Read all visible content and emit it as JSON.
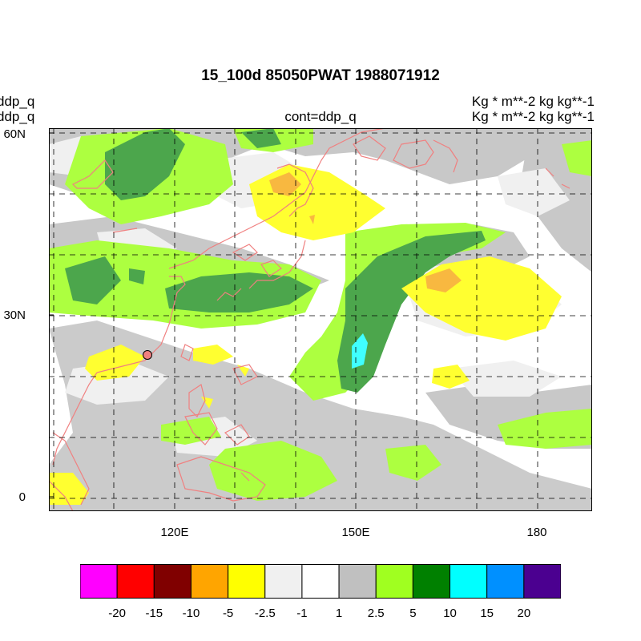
{
  "title": "15_100d 85050PWAT  1988071912",
  "left_labels": [
    "ddp_q",
    "ddp_q"
  ],
  "right_labels": [
    "Kg  * m**-2 kg kg**-1",
    "Kg  * m**-2 kg kg**-1"
  ],
  "center_label": "cont=ddp_q",
  "axes": {
    "y_ticks": [
      "60N",
      "30N",
      "0"
    ],
    "x_ticks": [
      "120E",
      "150E",
      "180"
    ]
  },
  "colorbar": {
    "colors": [
      "#ff00ff",
      "#ff0000",
      "#800000",
      "#ffa500",
      "#ffff00",
      "#f0f0f0",
      "#ffffff",
      "#c0c0c0",
      "#a0ff20",
      "#008000",
      "#00ffff",
      "#0090ff",
      "#4b0090"
    ],
    "labels": [
      "-20",
      "-15",
      "-10",
      "-5",
      "-2.5",
      "-1",
      "1",
      "2.5",
      "5",
      "10",
      "15",
      "20"
    ]
  },
  "colors": {
    "coastline": "#f08080",
    "gray": "#c8c8c8",
    "lightgray": "#f0f0f0",
    "lime": "#adff40",
    "green": "#4ca64c",
    "yellow": "#ffff30",
    "orange": "#f8b840",
    "cyan": "#40ffff",
    "marker": "#f08080"
  }
}
